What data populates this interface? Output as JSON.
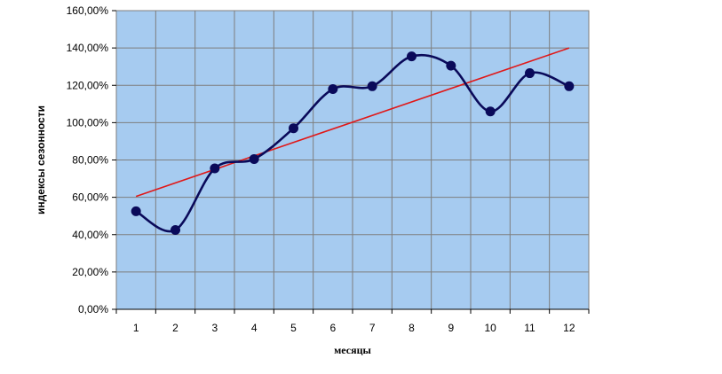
{
  "chart_data": {
    "type": "line",
    "title": "",
    "xlabel": "месяцы",
    "ylabel": "индексы сезонности",
    "categories": [
      "1",
      "2",
      "3",
      "4",
      "5",
      "6",
      "7",
      "8",
      "9",
      "10",
      "11",
      "12"
    ],
    "y_tick_labels": [
      "0,00%",
      "20,00%",
      "40,00%",
      "60,00%",
      "80,00%",
      "100,00%",
      "120,00%",
      "140,00%",
      "160,00%"
    ],
    "ylim": [
      0,
      160
    ],
    "grid": true,
    "legend": "none",
    "series": [
      {
        "values": [
          52.5,
          42.5,
          75.5,
          80.5,
          97,
          118,
          119.5,
          135.5,
          130.5,
          106,
          126.5,
          119.5
        ],
        "color": "#0a0a5a",
        "smooth": true,
        "markers": true
      }
    ],
    "trendline": {
      "start": 60.5,
      "end": 140,
      "color": "#e01818"
    },
    "plot_background": "#a6cbf0",
    "grid_color": "#7e7e7e"
  }
}
